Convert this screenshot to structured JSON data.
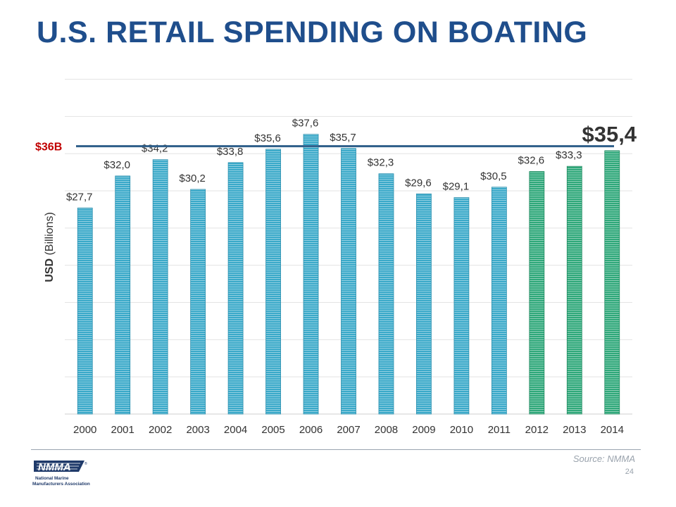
{
  "title": "U.S. RETAIL SPENDING ON BOATING",
  "source": "Source: NMMA",
  "page_number": "24",
  "logo": {
    "name": "NMMA",
    "subtitle_line1": "National Marine",
    "subtitle_line2": "Manufacturers Association",
    "registered": "®"
  },
  "colors": {
    "title": "#1f4e8c",
    "bar_blue": "#3aa9c9",
    "bar_green": "#2fa87a",
    "reference_line": "#2f5f8a",
    "reference_label": "#c00000",
    "grid": "#e3e3e3"
  },
  "chart_data": {
    "type": "bar",
    "title": "U.S. RETAIL SPENDING ON BOATING",
    "ylabel_bold": "USD",
    "ylabel_rest": " (Billions)",
    "categories": [
      "2000",
      "2001",
      "2002",
      "2003",
      "2004",
      "2005",
      "2006",
      "2007",
      "2008",
      "2009",
      "2010",
      "2011",
      "2012",
      "2013",
      "2014"
    ],
    "values": [
      27.7,
      32.0,
      34.2,
      30.2,
      33.8,
      35.6,
      37.6,
      35.7,
      32.3,
      29.6,
      29.1,
      30.5,
      32.6,
      33.3,
      35.4
    ],
    "labels": [
      "$27,7",
      "$32,0",
      "$34,2",
      "$30,2",
      "$33,8",
      "$35,6",
      "$37,6",
      "$35,7",
      "$32,3",
      "$29,6",
      "$29,1",
      "$30,5",
      "$32,6",
      "$33,3",
      "$35,4"
    ],
    "highlight_years": [
      "2012",
      "2013",
      "2014"
    ],
    "highlight_last_label": true,
    "reference_line": {
      "value": 36,
      "label": "$36B"
    },
    "ylim": [
      0,
      46
    ],
    "grid": true,
    "legend": false
  }
}
